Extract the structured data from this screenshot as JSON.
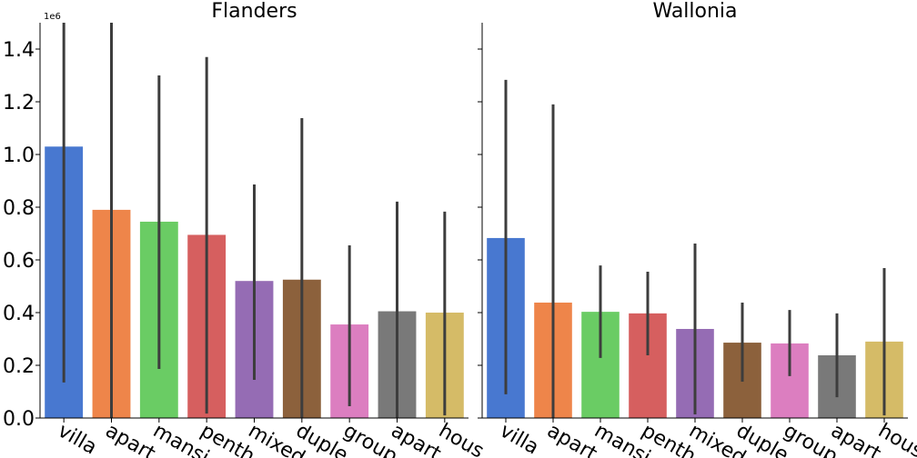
{
  "chart_data": [
    {
      "type": "bar",
      "title": "Flanders",
      "y_offset_label": "1e6",
      "categories": [
        "villa",
        "apart",
        "mansi",
        "penth",
        "mixed",
        "duple",
        "group",
        "apart",
        "hous"
      ],
      "values": [
        1.03,
        0.79,
        0.745,
        0.695,
        0.52,
        0.525,
        0.355,
        0.405,
        0.4
      ],
      "ci_low": [
        0.135,
        0,
        0.186,
        0.017,
        0.145,
        0,
        0.045,
        0,
        0.01
      ],
      "ci_high": [
        1.55,
        1.55,
        1.3,
        1.37,
        0.886,
        1.138,
        0.655,
        0.821,
        0.783
      ],
      "colors": [
        "#4878d0",
        "#ee854a",
        "#6acc64",
        "#d65f5f",
        "#956cb4",
        "#8c613c",
        "#dc7ec0",
        "#797979",
        "#d5bb67"
      ],
      "ylim": [
        0,
        1.5
      ],
      "yticks": [
        {
          "value": 0,
          "label": "0.0"
        },
        0.2,
        0.4,
        0.6,
        0.8,
        {
          "value": 1,
          "label": "1.0"
        },
        1.2,
        1.4
      ]
    },
    {
      "type": "bar",
      "title": "Wallonia",
      "categories": [
        "villa",
        "apart",
        "mansi",
        "penth",
        "mixed",
        "duple",
        "group",
        "apart",
        "hous"
      ],
      "values": [
        0.683,
        0.438,
        0.403,
        0.397,
        0.338,
        0.286,
        0.283,
        0.238,
        0.29
      ],
      "ci_low": [
        0.09,
        0,
        0.228,
        0.238,
        0.014,
        0.138,
        0.159,
        0.079,
        0.01
      ],
      "ci_high": [
        1.283,
        1.19,
        0.579,
        0.555,
        0.662,
        0.438,
        0.41,
        0.397,
        0.569
      ],
      "colors": [
        "#4878d0",
        "#ee854a",
        "#6acc64",
        "#d65f5f",
        "#956cb4",
        "#8c613c",
        "#dc7ec0",
        "#797979",
        "#d5bb67"
      ],
      "ylim": [
        0,
        1.5
      ]
    }
  ]
}
